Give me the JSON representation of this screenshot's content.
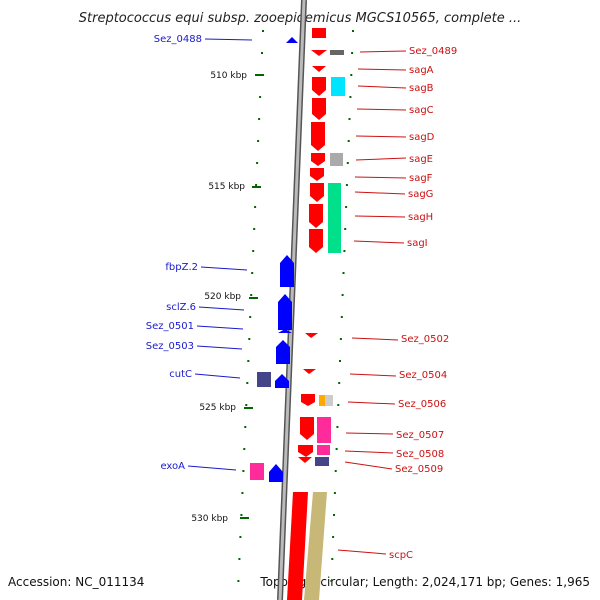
{
  "title": "Streptococcus equi subsp. zooepidemicus MGCS10565, complete ...",
  "footer": {
    "accession": "Accession: NC_011134",
    "summary": "Topology: circular; Length: 2,024,171 bp; Genes: 1,965"
  },
  "colors": {
    "forward": "#ff0000",
    "reverse": "#0000ff",
    "backbone": "#888888",
    "ticks": "#006600",
    "label_left": "#1a1acc",
    "label_right": "#cc1111"
  },
  "scale_labels": [
    "510 kbp",
    "515 kbp",
    "520 kbp",
    "525 kbp",
    "530 kbp"
  ],
  "genes_left": [
    {
      "name": "Sez_0488"
    },
    {
      "name": "fbpZ.2"
    },
    {
      "name": "sclZ.6"
    },
    {
      "name": "Sez_0501"
    },
    {
      "name": "Sez_0503"
    },
    {
      "name": "cutC"
    },
    {
      "name": "exoA"
    }
  ],
  "genes_right": [
    {
      "name": "Sez_0489"
    },
    {
      "name": "sagA"
    },
    {
      "name": "sagB"
    },
    {
      "name": "sagC"
    },
    {
      "name": "sagD"
    },
    {
      "name": "sagE"
    },
    {
      "name": "sagF"
    },
    {
      "name": "sagG"
    },
    {
      "name": "sagH"
    },
    {
      "name": "sagI"
    },
    {
      "name": "Sez_0502"
    },
    {
      "name": "Sez_0504"
    },
    {
      "name": "Sez_0506"
    },
    {
      "name": "Sez_0507"
    },
    {
      "name": "Sez_0508"
    },
    {
      "name": "Sez_0509"
    },
    {
      "name": "scpC"
    }
  ]
}
